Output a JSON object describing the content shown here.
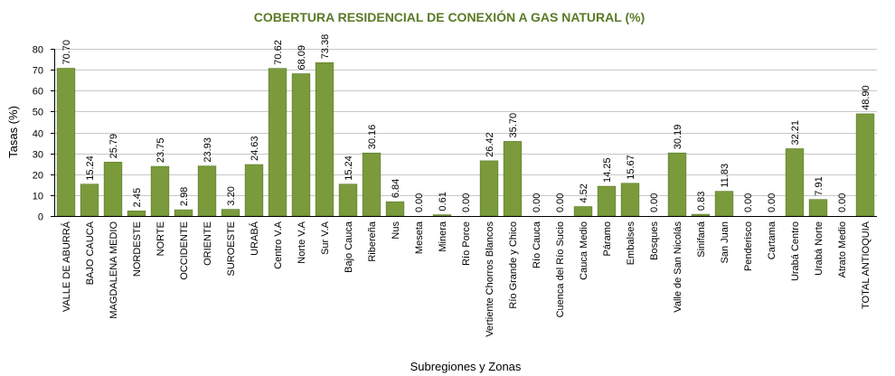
{
  "chart_data": {
    "type": "bar",
    "title": "COBERTURA RESIDENCIAL  DE CONEXIÓN A GAS NATURAL (%)",
    "xlabel": "Subregiones y Zonas",
    "ylabel": "Tasas (%)",
    "ylim": [
      0,
      80
    ],
    "yticks": [
      0,
      10,
      20,
      30,
      40,
      50,
      60,
      70,
      80
    ],
    "grid": true,
    "bar_color": "#7a9a3c",
    "categories": [
      "VALLE DE ABURRÁ",
      "BAJO CAUCA",
      "MAGDALENA MEDIO",
      "NORDESTE",
      "NORTE",
      "OCCIDENTE",
      "ORIENTE",
      "SUROESTE",
      "URABÁ",
      "Centro V.A",
      "Norte V.A",
      "Sur V.A",
      "Bajo Cauca",
      "Ribereña",
      "Nus",
      "Meseta",
      "Minera",
      "Río Porce",
      "Vertiente Chorros Blancos",
      "Río Grande y Chico",
      "Río Cauca",
      "Cuenca del Río Sucio",
      "Cauca Medio",
      "Páramo",
      "Embalses",
      "Bosques",
      "Valle de San Nicolás",
      "Sinifaná",
      "San Juan",
      "Penderisco",
      "Cartama",
      "Urabá Centro",
      "Urabá Norte",
      "Atrato Medio",
      "TOTAL ANTIOQUIA"
    ],
    "values": [
      70.7,
      15.24,
      25.79,
      2.45,
      23.75,
      2.98,
      23.93,
      3.2,
      24.63,
      70.62,
      68.09,
      73.38,
      15.24,
      30.16,
      6.84,
      0.0,
      0.61,
      0.0,
      26.42,
      35.7,
      0.0,
      0.0,
      4.52,
      14.25,
      15.67,
      0.0,
      30.19,
      0.83,
      11.83,
      0.0,
      0.0,
      32.21,
      7.91,
      0.0,
      48.9
    ]
  }
}
